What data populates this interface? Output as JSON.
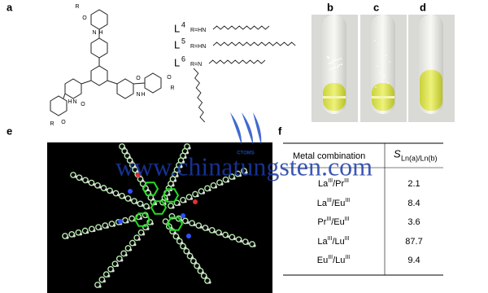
{
  "panels": {
    "a": "a",
    "b": "b",
    "c": "c",
    "d": "d",
    "e": "e",
    "f": "f"
  },
  "structure": {
    "atoms": [
      "R",
      "O",
      "N",
      "H",
      "O",
      "N",
      "H",
      "O",
      "N",
      "H",
      "O",
      "O",
      "R",
      "R"
    ]
  },
  "ligands": [
    {
      "symbol": "L",
      "index": "4",
      "r": "R=HN"
    },
    {
      "symbol": "L",
      "index": "5",
      "r": "R=HN"
    },
    {
      "symbol": "L",
      "index": "6",
      "r": "R=N"
    }
  ],
  "watermark": {
    "url": "www.chinatungsten.com",
    "logo": "CTOMS"
  },
  "table": {
    "header": {
      "metal": "Metal combination",
      "symbol": "S",
      "subscript": "Ln(a)/Ln(b)"
    },
    "separator": "/",
    "rows": [
      {
        "a": "La",
        "a_ox": "III",
        "b": "Pr",
        "b_ox": "III",
        "value": 2.1
      },
      {
        "a": "La",
        "a_ox": "III",
        "b": "Eu",
        "b_ox": "III",
        "value": 8.4
      },
      {
        "a": "Pr",
        "a_ox": "III",
        "b": "Eu",
        "b_ox": "III",
        "value": 3.6
      },
      {
        "a": "La",
        "a_ox": "III",
        "b": "Lu",
        "b_ox": "III",
        "value": 87.7
      },
      {
        "a": "Eu",
        "a_ox": "III",
        "b": "Lu",
        "b_ox": "III",
        "value": 9.4
      }
    ]
  }
}
